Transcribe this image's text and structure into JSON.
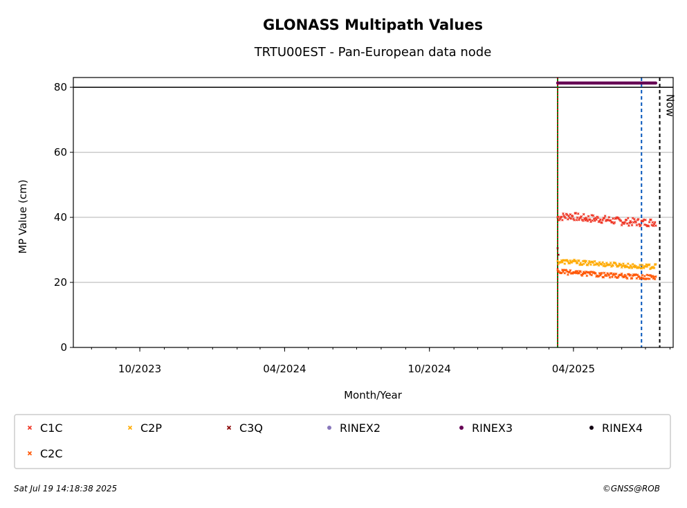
{
  "chart_data": {
    "type": "scatter",
    "title": "GLONASS Multipath Values",
    "subtitle": "TRTU00EST - Pan-European data node",
    "xlabel": "Month/Year",
    "ylabel": "MP Value (cm)",
    "x_type": "date",
    "xlim": [
      "2023-07-09",
      "2025-08-05"
    ],
    "ylim": [
      0,
      83
    ],
    "x_tick_labels": [
      {
        "date": "2023-10-01",
        "label": "10/2023"
      },
      {
        "date": "2024-04-01",
        "label": "04/2024"
      },
      {
        "date": "2024-10-01",
        "label": "10/2024"
      },
      {
        "date": "2025-04-01",
        "label": "04/2025"
      }
    ],
    "y_ticks": [
      0,
      20,
      40,
      60,
      80
    ],
    "grid": "y",
    "reference_lines": [
      {
        "type": "horizontal",
        "y": 80,
        "color": "#000000",
        "style": "solid"
      },
      {
        "type": "vertical",
        "x": "2025-03-12",
        "color": "#008000",
        "style": "solid"
      },
      {
        "type": "vertical",
        "x": "2025-03-12",
        "color": "#cc0000",
        "style": "dotted"
      },
      {
        "type": "vertical",
        "x": "2025-06-26",
        "color": "#0055bb",
        "style": "dashed"
      },
      {
        "type": "vertical",
        "x": "2025-07-19",
        "color": "#000000",
        "style": "dashed",
        "label": "Now"
      }
    ],
    "series": [
      {
        "name": "C1C",
        "marker": "x",
        "color": "#ee3322",
        "x_start": "2025-03-12",
        "x_end": "2025-07-14",
        "values": [
          40,
          40.5,
          39.8,
          39.6,
          39.3,
          38.8,
          38.6,
          38.4,
          38.5
        ]
      },
      {
        "name": "C2P",
        "marker": "x",
        "color": "#ffaa00",
        "x_start": "2025-03-12",
        "x_end": "2025-07-14",
        "values": [
          26.3,
          26.4,
          26.0,
          25.8,
          25.6,
          25.4,
          25.0,
          24.8,
          24.9
        ]
      },
      {
        "name": "C3Q",
        "marker": "x",
        "color": "#880000",
        "x_start": "2025-03-12",
        "x_end": "2025-03-13",
        "values": [
          30.5,
          28.5
        ]
      },
      {
        "name": "RINEX2",
        "marker": "o",
        "color": "#8877bb",
        "x_start": "2025-03-12",
        "x_end": "2025-07-14",
        "values": []
      },
      {
        "name": "RINEX3",
        "marker": "o",
        "color": "#660055",
        "x_start": "2025-03-12",
        "x_end": "2025-07-14",
        "values": [
          81.3,
          81.3
        ]
      },
      {
        "name": "RINEX4",
        "marker": "o",
        "color": "#110011",
        "x_start": "2025-03-12",
        "x_end": "2025-07-14",
        "values": []
      },
      {
        "name": "C2C",
        "marker": "x",
        "color": "#ff5500",
        "x_start": "2025-03-12",
        "x_end": "2025-07-14",
        "values": [
          23.4,
          23.0,
          22.7,
          22.5,
          22.2,
          22.0,
          21.8,
          21.7,
          21.7
        ]
      }
    ],
    "legend": {
      "placement": "bottom",
      "columns": 6
    },
    "footer_left": "Sat Jul 19 14:18:38 2025",
    "footer_right": "©GNSS@ROB"
  }
}
